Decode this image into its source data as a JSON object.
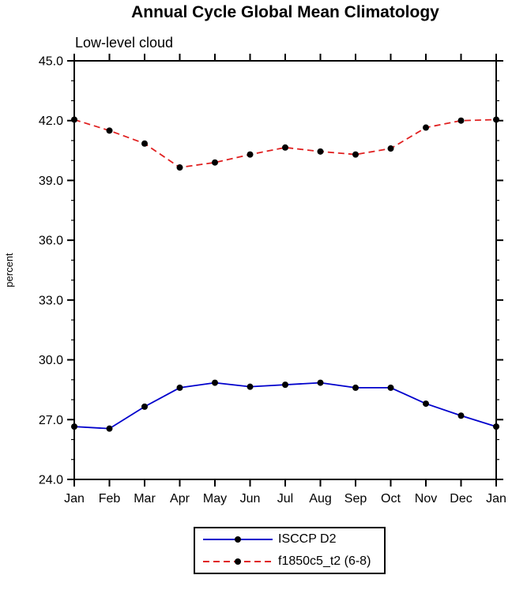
{
  "chart_data": {
    "type": "line",
    "title": "Annual Cycle Global Mean Climatology",
    "subtitle": "Low-level cloud",
    "ylabel": "percent",
    "categories": [
      "Jan",
      "Feb",
      "Mar",
      "Apr",
      "May",
      "Jun",
      "Jul",
      "Aug",
      "Sep",
      "Oct",
      "Nov",
      "Dec",
      "Jan"
    ],
    "ylim": [
      24.0,
      45.0
    ],
    "yticks": [
      24.0,
      27.0,
      30.0,
      33.0,
      36.0,
      39.0,
      42.0,
      45.0
    ],
    "grid": false,
    "legend_position": "bottom",
    "series": [
      {
        "name": "ISCCP D2",
        "color": "#0000cc",
        "style": "solid",
        "marker": "circle",
        "marker_color": "#000000",
        "values": [
          26.65,
          26.55,
          27.65,
          28.6,
          28.85,
          28.65,
          28.75,
          28.85,
          28.6,
          28.6,
          27.8,
          27.2,
          26.65
        ]
      },
      {
        "name": "f1850c5_t2 (6-8)",
        "color": "#e02020",
        "style": "dashed",
        "marker": "circle",
        "marker_color": "#000000",
        "values": [
          42.05,
          41.5,
          40.85,
          39.65,
          39.9,
          40.3,
          40.65,
          40.45,
          40.3,
          40.6,
          41.65,
          42.0,
          42.05
        ]
      }
    ]
  }
}
